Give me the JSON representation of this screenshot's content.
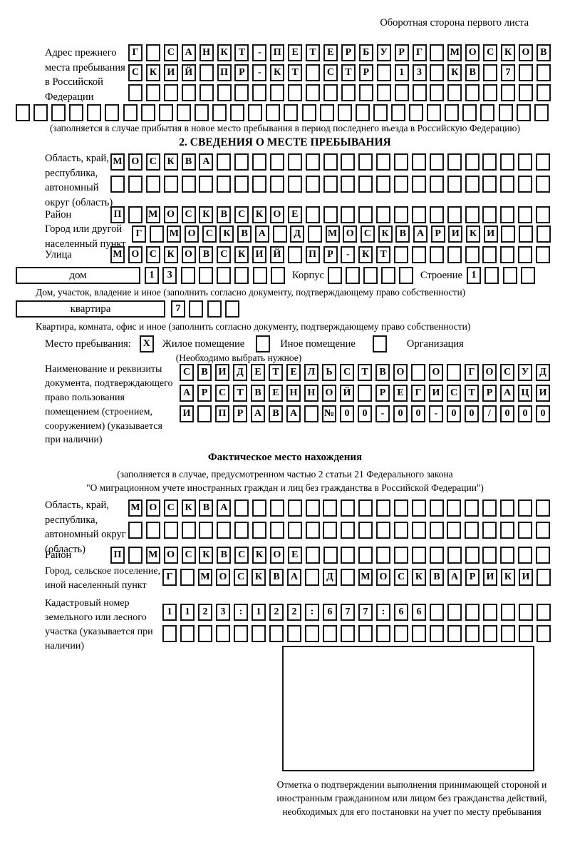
{
  "page": {
    "corner_note": "Оборотная сторона первого листа"
  },
  "prev_address": {
    "label": "Адрес прежнего места пребывания в Российской Федерации",
    "rows": [
      [
        "Г",
        "",
        "С",
        "А",
        "Н",
        "К",
        "Т",
        "-",
        "П",
        "Е",
        "Т",
        "Е",
        "Р",
        "Б",
        "У",
        "Р",
        "Г",
        "",
        "М",
        "О",
        "С",
        "К",
        "О",
        "В"
      ],
      [
        "С",
        "К",
        "И",
        "Й",
        "",
        "П",
        "Р",
        "-",
        "К",
        "Т",
        "",
        "С",
        "Т",
        "Р",
        "",
        "1",
        "3",
        "",
        "К",
        "В",
        "",
        "7",
        "",
        ""
      ],
      [
        "",
        "",
        "",
        "",
        "",
        "",
        "",
        "",
        "",
        "",
        "",
        "",
        "",
        "",
        "",
        "",
        "",
        "",
        "",
        "",
        "",
        "",
        "",
        ""
      ]
    ],
    "full_row": [
      "",
      "",
      "",
      "",
      "",
      "",
      "",
      "",
      "",
      "",
      "",
      "",
      "",
      "",
      "",
      "",
      "",
      "",
      "",
      "",
      "",
      "",
      "",
      "",
      "",
      "",
      "",
      "",
      "",
      ""
    ],
    "note": "(заполняется в случае прибытия в новое место пребывания в период последнего въезда в Российскую Федерацию)"
  },
  "section2": {
    "title": "2. СВЕДЕНИЯ О МЕСТЕ ПРЕБЫВАНИЯ",
    "region": {
      "label": "Область, край, республика, автономный округ (область)",
      "rows": [
        [
          "М",
          "О",
          "С",
          "К",
          "В",
          "А",
          "",
          "",
          "",
          "",
          "",
          "",
          "",
          "",
          "",
          "",
          "",
          "",
          "",
          "",
          "",
          "",
          "",
          "",
          ""
        ],
        [
          "",
          "",
          "",
          "",
          "",
          "",
          "",
          "",
          "",
          "",
          "",
          "",
          "",
          "",
          "",
          "",
          "",
          "",
          "",
          "",
          "",
          "",
          "",
          "",
          ""
        ]
      ]
    },
    "district": {
      "label": "Район",
      "row": [
        "П",
        "",
        "М",
        "О",
        "С",
        "К",
        "В",
        "С",
        "К",
        "О",
        "Е",
        "",
        "",
        "",
        "",
        "",
        "",
        "",
        "",
        "",
        "",
        "",
        "",
        "",
        ""
      ]
    },
    "city": {
      "label": "Город или другой населенный пункт",
      "row": [
        "Г",
        "",
        "М",
        "О",
        "С",
        "К",
        "В",
        "А",
        "",
        "Д",
        "",
        "М",
        "О",
        "С",
        "К",
        "В",
        "А",
        "Р",
        "И",
        "К",
        "И",
        "",
        "",
        ""
      ]
    },
    "street": {
      "label": "Улица",
      "row": [
        "М",
        "О",
        "С",
        "К",
        "О",
        "В",
        "С",
        "К",
        "И",
        "Й",
        "",
        "П",
        "Р",
        "-",
        "К",
        "Т",
        "",
        "",
        "",
        "",
        "",
        "",
        "",
        "",
        ""
      ]
    },
    "house": {
      "box_label": "дом",
      "cells": [
        "1",
        "3",
        "",
        "",
        "",
        "",
        "",
        ""
      ],
      "korpus_label": "Корпус",
      "korpus_cells": [
        "",
        "",
        "",
        "",
        ""
      ],
      "stroenie_label": "Строение",
      "stroenie_cells": [
        "1",
        "",
        "",
        ""
      ],
      "caption": "Дом, участок, владение и иное (заполнить согласно документу, подтверждающему право собственности)"
    },
    "apartment": {
      "box_label": "квартира",
      "cells": [
        "7",
        "",
        "",
        ""
      ],
      "caption": "Квартира, комната, офис и иное (заполнить согласно документу, подтверждающему право собственности)"
    },
    "stay_type": {
      "label": "Место пребывания:",
      "options": [
        {
          "label": "Жилое помещение",
          "mark": "X"
        },
        {
          "label": "Иное помещение",
          "mark": ""
        },
        {
          "label": "Организация",
          "mark": ""
        }
      ],
      "note": "(Необходимо выбрать нужное)"
    },
    "document": {
      "label": "Наименование и реквизиты документа, подтверждающего право пользования помещением (строением, сооружением) (указывается при наличии)",
      "rows": [
        [
          "С",
          "В",
          "И",
          "Д",
          "Е",
          "Т",
          "Е",
          "Л",
          "Ь",
          "С",
          "Т",
          "В",
          "О",
          "",
          "О",
          "",
          "Г",
          "О",
          "С",
          "У",
          "Д"
        ],
        [
          "А",
          "Р",
          "С",
          "Т",
          "В",
          "Е",
          "Н",
          "Н",
          "О",
          "Й",
          "",
          "Р",
          "Е",
          "Г",
          "И",
          "С",
          "Т",
          "Р",
          "А",
          "Ц",
          "И"
        ],
        [
          "И",
          "",
          "П",
          "Р",
          "А",
          "В",
          "А",
          "",
          "№",
          "0",
          "0",
          "-",
          "0",
          "0",
          "-",
          "0",
          "0",
          "/",
          "0",
          "0",
          "0"
        ]
      ]
    }
  },
  "actual_location": {
    "title": "Фактическое место нахождения",
    "note_line1": "(заполняется в случае, предусмотренном частью 2 статьи 21 Федерального закона",
    "note_line2": "\"О миграционном учете иностранных граждан и лиц без гражданства в Российской Федерации\")",
    "region": {
      "label": "Область, край, республика, автономный округ (область)",
      "rows": [
        [
          "М",
          "О",
          "С",
          "К",
          "В",
          "А",
          "",
          "",
          "",
          "",
          "",
          "",
          "",
          "",
          "",
          "",
          "",
          "",
          "",
          "",
          "",
          "",
          "",
          ""
        ],
        [
          "",
          "",
          "",
          "",
          "",
          "",
          "",
          "",
          "",
          "",
          "",
          "",
          "",
          "",
          "",
          "",
          "",
          "",
          "",
          "",
          "",
          "",
          "",
          ""
        ]
      ]
    },
    "district": {
      "label": "Район",
      "row": [
        "П",
        "",
        "М",
        "О",
        "С",
        "К",
        "В",
        "С",
        "К",
        "О",
        "Е",
        "",
        "",
        "",
        "",
        "",
        "",
        "",
        "",
        "",
        "",
        "",
        "",
        "",
        ""
      ]
    },
    "city": {
      "label": "Город, сельское поселение, иной населенный пункт",
      "row": [
        "Г",
        "",
        "М",
        "О",
        "С",
        "К",
        "В",
        "А",
        "",
        "Д",
        "",
        "М",
        "О",
        "С",
        "К",
        "В",
        "А",
        "Р",
        "И",
        "К",
        "И",
        ""
      ]
    },
    "cadastral": {
      "label": "Кадастровый номер земельного или лесного участка (указывается при наличии)",
      "rows": [
        [
          "1",
          "1",
          "2",
          "3",
          ":",
          "1",
          "2",
          "2",
          ":",
          "6",
          "7",
          "7",
          ":",
          "6",
          "6",
          "",
          "",
          "",
          "",
          "",
          "",
          ""
        ],
        [
          "",
          "",
          "",
          "",
          "",
          "",
          "",
          "",
          "",
          "",
          "",
          "",
          "",
          "",
          "",
          "",
          "",
          "",
          "",
          "",
          "",
          ""
        ]
      ]
    },
    "stamp_caption": "Отметка о подтверждении выполнения принимающей стороной и иностранным гражданином или лицом без гражданства действий, необходимых для его постановки на учет по месту пребывания"
  }
}
